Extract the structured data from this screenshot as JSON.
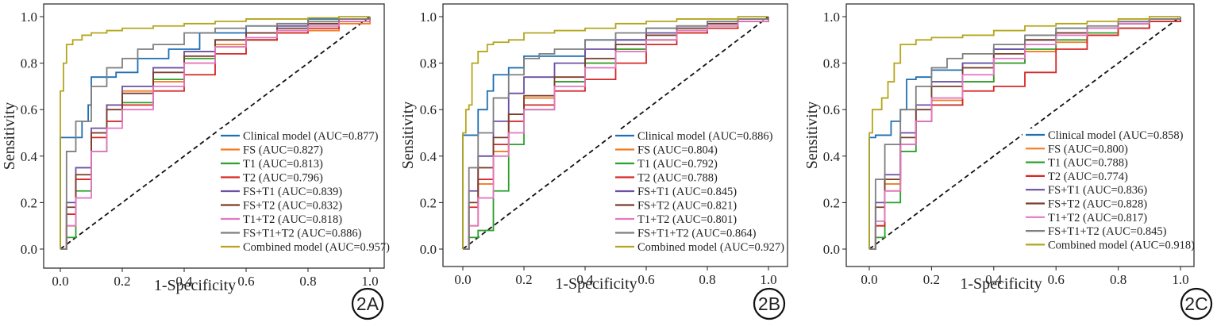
{
  "chart_data": [
    {
      "type": "line",
      "panel_label": "2A",
      "xlabel": "1-Specificity",
      "ylabel": "Sensitivity",
      "xlim": [
        0.0,
        1.0
      ],
      "ylim": [
        0.0,
        1.0
      ],
      "x_ticks": [
        "0.0",
        "0.2",
        "0.4",
        "0.6",
        "0.8",
        "1.0"
      ],
      "y_ticks": [
        "0.0",
        "0.2",
        "0.4",
        "0.6",
        "0.8",
        "1.0"
      ],
      "legend_position": "bottom-right",
      "grid": false,
      "series": [
        {
          "name": "Clinical model (AUC=0.877)",
          "color": "#1f6fb2",
          "x": [
            0,
            0,
            0.04,
            0.07,
            0.09,
            0.1,
            0.18,
            0.25,
            0.35,
            0.45,
            0.6,
            0.8,
            1
          ],
          "y": [
            0,
            0.48,
            0.48,
            0.55,
            0.62,
            0.74,
            0.76,
            0.82,
            0.86,
            0.93,
            0.96,
            0.99,
            1
          ]
        },
        {
          "name": "FS (AUC=0.827)",
          "color": "#f47b20",
          "x": [
            0,
            0.02,
            0.05,
            0.1,
            0.15,
            0.2,
            0.3,
            0.4,
            0.5,
            0.6,
            0.7,
            0.8,
            0.9,
            1
          ],
          "y": [
            0,
            0.1,
            0.3,
            0.5,
            0.62,
            0.68,
            0.72,
            0.8,
            0.88,
            0.9,
            0.93,
            0.94,
            0.97,
            1
          ]
        },
        {
          "name": "T1 (AUC=0.813)",
          "color": "#2ca02c",
          "x": [
            0,
            0.02,
            0.05,
            0.1,
            0.15,
            0.2,
            0.3,
            0.4,
            0.5,
            0.6,
            0.7,
            0.8,
            0.9,
            1
          ],
          "y": [
            0,
            0.05,
            0.25,
            0.42,
            0.55,
            0.63,
            0.73,
            0.82,
            0.87,
            0.9,
            0.94,
            0.96,
            0.98,
            1
          ]
        },
        {
          "name": "T2 (AUC=0.796)",
          "color": "#d62728",
          "x": [
            0,
            0.02,
            0.05,
            0.1,
            0.15,
            0.2,
            0.3,
            0.4,
            0.5,
            0.6,
            0.7,
            0.8,
            0.9,
            1
          ],
          "y": [
            0,
            0.15,
            0.3,
            0.48,
            0.55,
            0.62,
            0.68,
            0.75,
            0.84,
            0.9,
            0.93,
            0.95,
            0.98,
            1
          ]
        },
        {
          "name": "FS+T1 (AUC=0.839)",
          "color": "#6a4fa3",
          "x": [
            0,
            0.02,
            0.05,
            0.1,
            0.15,
            0.2,
            0.3,
            0.4,
            0.5,
            0.6,
            0.7,
            0.8,
            0.9,
            1
          ],
          "y": [
            0,
            0.2,
            0.35,
            0.52,
            0.62,
            0.7,
            0.78,
            0.85,
            0.9,
            0.93,
            0.96,
            0.97,
            0.99,
            1
          ]
        },
        {
          "name": "FS+T2 (AUC=0.832)",
          "color": "#7b3f2b",
          "x": [
            0,
            0.02,
            0.05,
            0.1,
            0.15,
            0.2,
            0.3,
            0.4,
            0.5,
            0.6,
            0.7,
            0.8,
            0.9,
            1
          ],
          "y": [
            0,
            0.18,
            0.32,
            0.5,
            0.6,
            0.67,
            0.76,
            0.83,
            0.9,
            0.93,
            0.95,
            0.97,
            0.99,
            1
          ]
        },
        {
          "name": "T1+T2 (AUC=0.818)",
          "color": "#e377c2",
          "x": [
            0,
            0.02,
            0.05,
            0.1,
            0.15,
            0.2,
            0.3,
            0.4,
            0.5,
            0.6,
            0.7,
            0.8,
            0.9,
            1
          ],
          "y": [
            0,
            0.1,
            0.22,
            0.42,
            0.52,
            0.6,
            0.7,
            0.8,
            0.87,
            0.91,
            0.94,
            0.96,
            0.98,
            1
          ]
        },
        {
          "name": "FS+T1+T2 (AUC=0.886)",
          "color": "#7f7f7f",
          "x": [
            0,
            0.02,
            0.05,
            0.1,
            0.15,
            0.2,
            0.25,
            0.3,
            0.4,
            0.5,
            0.6,
            0.7,
            0.8,
            0.9,
            1
          ],
          "y": [
            0,
            0.42,
            0.55,
            0.7,
            0.78,
            0.82,
            0.86,
            0.88,
            0.93,
            0.95,
            0.96,
            0.97,
            0.98,
            0.99,
            1
          ]
        },
        {
          "name": "Combined model (AUC=0.957)",
          "color": "#b5a51c",
          "x": [
            0,
            0,
            0.01,
            0.02,
            0.04,
            0.07,
            0.1,
            0.15,
            0.2,
            0.3,
            0.4,
            0.5,
            0.6,
            0.7,
            0.8,
            0.9,
            1
          ],
          "y": [
            0,
            0.68,
            0.8,
            0.88,
            0.9,
            0.92,
            0.93,
            0.94,
            0.95,
            0.96,
            0.97,
            0.98,
            0.99,
            0.99,
            0.995,
            1,
            1
          ]
        }
      ]
    },
    {
      "type": "line",
      "panel_label": "2B",
      "xlabel": "1-Specificity",
      "ylabel": "Sensitivity",
      "xlim": [
        0.0,
        1.0
      ],
      "ylim": [
        0.0,
        1.0
      ],
      "x_ticks": [
        "0.0",
        "0.2",
        "0.4",
        "0.6",
        "0.8",
        "1.0"
      ],
      "y_ticks": [
        "0.0",
        "0.2",
        "0.4",
        "0.6",
        "0.8",
        "1.0"
      ],
      "legend_position": "bottom-right",
      "grid": false,
      "series": [
        {
          "name": "Clinical model (AUC=0.886)",
          "color": "#1f6fb2",
          "x": [
            0,
            0,
            0.03,
            0.05,
            0.08,
            0.1,
            0.15,
            0.2,
            0.3,
            0.4,
            0.6,
            0.8,
            1
          ],
          "y": [
            0,
            0.49,
            0.49,
            0.6,
            0.68,
            0.75,
            0.78,
            0.83,
            0.83,
            0.9,
            0.95,
            0.98,
            1
          ]
        },
        {
          "name": "FS (AUC=0.804)",
          "color": "#f47b20",
          "x": [
            0,
            0.02,
            0.05,
            0.1,
            0.15,
            0.2,
            0.3,
            0.4,
            0.5,
            0.6,
            0.7,
            0.8,
            0.9,
            1
          ],
          "y": [
            0,
            0.1,
            0.28,
            0.42,
            0.55,
            0.65,
            0.72,
            0.8,
            0.86,
            0.9,
            0.93,
            0.95,
            0.98,
            1
          ]
        },
        {
          "name": "T1 (AUC=0.792)",
          "color": "#2ca02c",
          "x": [
            0,
            0.02,
            0.05,
            0.1,
            0.15,
            0.2,
            0.3,
            0.4,
            0.5,
            0.6,
            0.7,
            0.8,
            0.9,
            1
          ],
          "y": [
            0,
            0.05,
            0.08,
            0.25,
            0.45,
            0.6,
            0.72,
            0.8,
            0.86,
            0.9,
            0.94,
            0.96,
            0.98,
            1
          ]
        },
        {
          "name": "T2 (AUC=0.788)",
          "color": "#d62728",
          "x": [
            0,
            0.02,
            0.05,
            0.1,
            0.15,
            0.2,
            0.3,
            0.4,
            0.5,
            0.6,
            0.7,
            0.8,
            0.9,
            1
          ],
          "y": [
            0,
            0.18,
            0.3,
            0.45,
            0.55,
            0.62,
            0.68,
            0.73,
            0.8,
            0.88,
            0.93,
            0.95,
            0.98,
            1
          ]
        },
        {
          "name": "FS+T1 (AUC=0.845)",
          "color": "#6a4fa3",
          "x": [
            0,
            0.02,
            0.05,
            0.1,
            0.15,
            0.2,
            0.3,
            0.4,
            0.5,
            0.6,
            0.7,
            0.8,
            0.9,
            1
          ],
          "y": [
            0,
            0.25,
            0.4,
            0.55,
            0.67,
            0.74,
            0.8,
            0.86,
            0.9,
            0.93,
            0.96,
            0.97,
            0.99,
            1
          ]
        },
        {
          "name": "FS+T2 (AUC=0.821)",
          "color": "#7b3f2b",
          "x": [
            0,
            0.02,
            0.05,
            0.1,
            0.15,
            0.2,
            0.3,
            0.4,
            0.5,
            0.6,
            0.7,
            0.8,
            0.9,
            1
          ],
          "y": [
            0,
            0.2,
            0.35,
            0.48,
            0.58,
            0.66,
            0.74,
            0.82,
            0.88,
            0.92,
            0.95,
            0.97,
            0.99,
            1
          ]
        },
        {
          "name": "T1+T2 (AUC=0.801)",
          "color": "#e377c2",
          "x": [
            0,
            0.02,
            0.05,
            0.1,
            0.15,
            0.2,
            0.3,
            0.4,
            0.5,
            0.6,
            0.7,
            0.8,
            0.9,
            1
          ],
          "y": [
            0,
            0.1,
            0.22,
            0.4,
            0.5,
            0.6,
            0.7,
            0.78,
            0.85,
            0.9,
            0.94,
            0.96,
            0.98,
            1
          ]
        },
        {
          "name": "FS+T1+T2 (AUC=0.864)",
          "color": "#7f7f7f",
          "x": [
            0,
            0.02,
            0.05,
            0.1,
            0.15,
            0.2,
            0.25,
            0.3,
            0.4,
            0.5,
            0.6,
            0.7,
            0.8,
            0.9,
            1
          ],
          "y": [
            0,
            0.35,
            0.5,
            0.65,
            0.75,
            0.82,
            0.84,
            0.86,
            0.9,
            0.93,
            0.95,
            0.96,
            0.98,
            0.99,
            1
          ]
        },
        {
          "name": "Combined model (AUC=0.927)",
          "color": "#b5a51c",
          "x": [
            0,
            0,
            0.01,
            0.02,
            0.03,
            0.05,
            0.08,
            0.1,
            0.15,
            0.2,
            0.3,
            0.4,
            0.5,
            0.6,
            0.7,
            0.8,
            0.9,
            1
          ],
          "y": [
            0,
            0.5,
            0.6,
            0.62,
            0.8,
            0.85,
            0.88,
            0.89,
            0.9,
            0.93,
            0.94,
            0.95,
            0.97,
            0.98,
            0.99,
            0.99,
            1,
            1
          ]
        }
      ]
    },
    {
      "type": "line",
      "panel_label": "2C",
      "xlabel": "1-Specificity",
      "ylabel": "Sensitivity",
      "xlim": [
        0.0,
        1.0
      ],
      "ylim": [
        0.0,
        1.0
      ],
      "x_ticks": [
        "0.0",
        "0.2",
        "0.4",
        "0.6",
        "0.8",
        "1.0"
      ],
      "y_ticks": [
        "0.0",
        "0.2",
        "0.4",
        "0.6",
        "0.8",
        "1.0"
      ],
      "legend_position": "bottom-right",
      "grid": false,
      "series": [
        {
          "name": "Clinical model (AUC=0.858)",
          "color": "#1f6fb2",
          "x": [
            0,
            0,
            0.02,
            0.05,
            0.07,
            0.1,
            0.12,
            0.15,
            0.2,
            0.3,
            0.4,
            0.5,
            0.6,
            0.8,
            1
          ],
          "y": [
            0,
            0.48,
            0.49,
            0.49,
            0.55,
            0.6,
            0.73,
            0.74,
            0.77,
            0.8,
            0.86,
            0.9,
            0.95,
            0.98,
            1
          ]
        },
        {
          "name": "FS (AUC=0.800)",
          "color": "#f47b20",
          "x": [
            0,
            0.02,
            0.05,
            0.1,
            0.15,
            0.2,
            0.3,
            0.4,
            0.5,
            0.6,
            0.7,
            0.8,
            0.9,
            1
          ],
          "y": [
            0,
            0.1,
            0.28,
            0.45,
            0.55,
            0.64,
            0.72,
            0.8,
            0.85,
            0.89,
            0.92,
            0.95,
            0.98,
            1
          ]
        },
        {
          "name": "T1 (AUC=0.788)",
          "color": "#2ca02c",
          "x": [
            0,
            0.02,
            0.05,
            0.1,
            0.15,
            0.2,
            0.3,
            0.4,
            0.5,
            0.6,
            0.7,
            0.8,
            0.9,
            1
          ],
          "y": [
            0,
            0.05,
            0.2,
            0.42,
            0.55,
            0.62,
            0.72,
            0.8,
            0.86,
            0.9,
            0.93,
            0.95,
            0.98,
            1
          ]
        },
        {
          "name": "T2 (AUC=0.774)",
          "color": "#d62728",
          "x": [
            0,
            0.02,
            0.05,
            0.1,
            0.15,
            0.2,
            0.3,
            0.4,
            0.5,
            0.6,
            0.7,
            0.8,
            0.9,
            1
          ],
          "y": [
            0,
            0.1,
            0.25,
            0.45,
            0.55,
            0.62,
            0.68,
            0.7,
            0.76,
            0.86,
            0.92,
            0.95,
            0.98,
            1
          ]
        },
        {
          "name": "FS+T1 (AUC=0.836)",
          "color": "#6a4fa3",
          "x": [
            0,
            0.02,
            0.05,
            0.1,
            0.15,
            0.2,
            0.3,
            0.4,
            0.5,
            0.6,
            0.7,
            0.8,
            0.9,
            1
          ],
          "y": [
            0,
            0.2,
            0.32,
            0.5,
            0.62,
            0.72,
            0.8,
            0.86,
            0.9,
            0.93,
            0.95,
            0.97,
            0.99,
            1
          ]
        },
        {
          "name": "FS+T2 (AUC=0.828)",
          "color": "#7b3f2b",
          "x": [
            0,
            0.02,
            0.05,
            0.1,
            0.15,
            0.2,
            0.3,
            0.4,
            0.5,
            0.6,
            0.7,
            0.8,
            0.9,
            1
          ],
          "y": [
            0,
            0.18,
            0.3,
            0.48,
            0.6,
            0.7,
            0.78,
            0.84,
            0.9,
            0.93,
            0.95,
            0.97,
            0.99,
            1
          ]
        },
        {
          "name": "T1+T2 (AUC=0.817)",
          "color": "#e377c2",
          "x": [
            0,
            0.02,
            0.05,
            0.1,
            0.15,
            0.2,
            0.3,
            0.4,
            0.5,
            0.6,
            0.7,
            0.8,
            0.9,
            1
          ],
          "y": [
            0,
            0.12,
            0.25,
            0.45,
            0.55,
            0.65,
            0.75,
            0.82,
            0.88,
            0.92,
            0.95,
            0.97,
            0.99,
            1
          ]
        },
        {
          "name": "FS+T1+T2 (AUC=0.845)",
          "color": "#7f7f7f",
          "x": [
            0,
            0.02,
            0.05,
            0.1,
            0.15,
            0.2,
            0.25,
            0.3,
            0.4,
            0.5,
            0.6,
            0.7,
            0.8,
            0.9,
            1
          ],
          "y": [
            0,
            0.3,
            0.45,
            0.6,
            0.7,
            0.78,
            0.82,
            0.84,
            0.88,
            0.92,
            0.95,
            0.96,
            0.98,
            0.99,
            1
          ]
        },
        {
          "name": "Combined model (AUC=0.918)",
          "color": "#b5a51c",
          "x": [
            0,
            0,
            0.01,
            0.02,
            0.04,
            0.06,
            0.08,
            0.1,
            0.15,
            0.2,
            0.3,
            0.4,
            0.5,
            0.6,
            0.7,
            0.8,
            0.9,
            1
          ],
          "y": [
            0,
            0.5,
            0.6,
            0.6,
            0.65,
            0.72,
            0.8,
            0.88,
            0.9,
            0.91,
            0.92,
            0.94,
            0.96,
            0.97,
            0.98,
            0.99,
            1,
            1
          ]
        }
      ]
    }
  ]
}
